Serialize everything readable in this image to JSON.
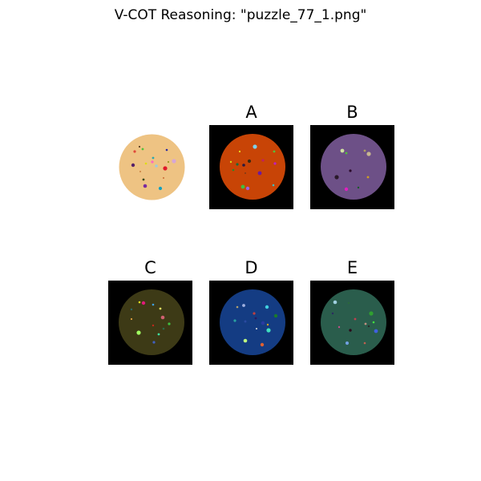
{
  "title": "V-COT Reasoning: \"puzzle_77_1.png\"",
  "reference": {
    "circle_color": "#eec383"
  },
  "options": [
    {
      "label": "A",
      "circle_color": "#c84406",
      "background": "#000000"
    },
    {
      "label": "B",
      "circle_color": "#6d5087",
      "background": "#000000"
    },
    {
      "label": "C",
      "circle_color": "#3d3a16",
      "background": "#000000"
    },
    {
      "label": "D",
      "circle_color": "#143c83",
      "background": "#000000"
    },
    {
      "label": "E",
      "circle_color": "#2a5d4c",
      "background": "#000000"
    }
  ]
}
